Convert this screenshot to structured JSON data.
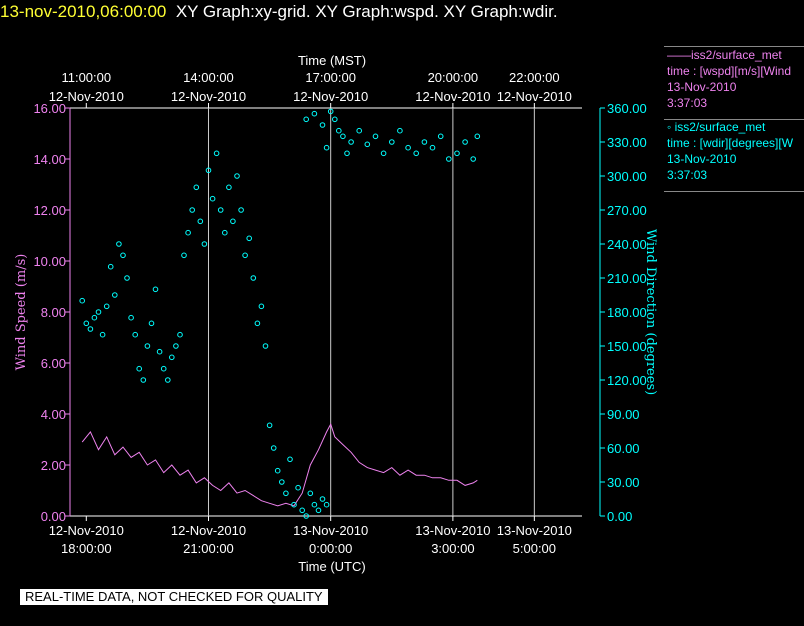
{
  "header": {
    "date": "13-nov-2010,06:00:00",
    "graphs": "XY Graph:xy-grid.  XY Graph:wspd.  XY Graph:wdir."
  },
  "legend": [
    {
      "line1": "——iss2/surface_met",
      "line2": "time : [wspd][m/s][Wind",
      "line3": "13-Nov-2010",
      "line4": "3:37:03",
      "color": "#ee82ee"
    },
    {
      "line1": "◦  iss2/surface_met",
      "line2": "time : [wdir][degrees][W",
      "line3": "13-Nov-2010",
      "line4": "3:37:03",
      "color": "#00ffff"
    }
  ],
  "disclaimer": "REAL-TIME DATA, NOT CHECKED FOR QUALITY",
  "chart_data": {
    "type": "line",
    "top_axis": {
      "label": "Time (MST)",
      "ticks": [
        {
          "hours": 0,
          "time": "11:00:00",
          "date": "12-Nov-2010"
        },
        {
          "hours": 3,
          "time": "14:00:00",
          "date": "12-Nov-2010"
        },
        {
          "hours": 6,
          "time": "17:00:00",
          "date": "12-Nov-2010"
        },
        {
          "hours": 9,
          "time": "20:00:00",
          "date": "12-Nov-2010"
        },
        {
          "hours": 11,
          "time": "22:00:00",
          "date": "12-Nov-2010"
        }
      ]
    },
    "bottom_axis": {
      "label": "Time (UTC)",
      "range": [
        "12-Nov-2010 17:35",
        "13-Nov-2010 06:10"
      ],
      "ticks": [
        {
          "hours": 0,
          "date": "12-Nov-2010",
          "time": "18:00:00"
        },
        {
          "hours": 3,
          "date": "12-Nov-2010",
          "time": "21:00:00"
        },
        {
          "hours": 6,
          "date": "13-Nov-2010",
          "time": "0:00:00"
        },
        {
          "hours": 9,
          "date": "13-Nov-2010",
          "time": "3:00:00"
        },
        {
          "hours": 11,
          "date": "13-Nov-2010",
          "time": "5:00:00"
        }
      ]
    },
    "y_left": {
      "label": "Wind Speed (m/s)",
      "min": 0,
      "max": 16,
      "ticks": [
        "0.00",
        "2.00",
        "4.00",
        "6.00",
        "8.00",
        "10.00",
        "12.00",
        "14.00",
        "16.00"
      ],
      "color": "#ee82ee"
    },
    "y_right": {
      "label": "Wind Direction (degrees)",
      "min": 0,
      "max": 360,
      "ticks": [
        "0.00",
        "30.00",
        "60.00",
        "90.00",
        "120.00",
        "150.00",
        "180.00",
        "210.00",
        "240.00",
        "270.00",
        "300.00",
        "330.00",
        "360.00"
      ],
      "color": "#00ffff"
    },
    "series": [
      {
        "name": "iss2/surface_met wspd",
        "kind": "line",
        "axis": "left",
        "color": "#ee82ee",
        "points": [
          [
            -0.1,
            2.9
          ],
          [
            0.1,
            3.3
          ],
          [
            0.3,
            2.6
          ],
          [
            0.5,
            3.1
          ],
          [
            0.7,
            2.4
          ],
          [
            0.9,
            2.7
          ],
          [
            1.1,
            2.3
          ],
          [
            1.3,
            2.5
          ],
          [
            1.5,
            2.0
          ],
          [
            1.7,
            2.2
          ],
          [
            1.9,
            1.7
          ],
          [
            2.1,
            2.0
          ],
          [
            2.3,
            1.6
          ],
          [
            2.5,
            1.8
          ],
          [
            2.7,
            1.3
          ],
          [
            2.9,
            1.5
          ],
          [
            3.1,
            1.2
          ],
          [
            3.3,
            1.0
          ],
          [
            3.5,
            1.3
          ],
          [
            3.7,
            0.9
          ],
          [
            3.9,
            1.0
          ],
          [
            4.1,
            0.8
          ],
          [
            4.3,
            0.6
          ],
          [
            4.5,
            0.5
          ],
          [
            4.7,
            0.4
          ],
          [
            4.9,
            0.5
          ],
          [
            5.1,
            0.4
          ],
          [
            5.3,
            0.9
          ],
          [
            5.5,
            2.0
          ],
          [
            5.7,
            2.6
          ],
          [
            5.9,
            3.3
          ],
          [
            6.0,
            3.6
          ],
          [
            6.1,
            3.1
          ],
          [
            6.3,
            2.8
          ],
          [
            6.5,
            2.5
          ],
          [
            6.7,
            2.1
          ],
          [
            6.9,
            1.9
          ],
          [
            7.1,
            1.8
          ],
          [
            7.3,
            1.7
          ],
          [
            7.5,
            1.9
          ],
          [
            7.7,
            1.6
          ],
          [
            7.9,
            1.8
          ],
          [
            8.1,
            1.6
          ],
          [
            8.3,
            1.6
          ],
          [
            8.5,
            1.5
          ],
          [
            8.7,
            1.5
          ],
          [
            8.9,
            1.4
          ],
          [
            9.1,
            1.4
          ],
          [
            9.3,
            1.2
          ],
          [
            9.5,
            1.3
          ],
          [
            9.6,
            1.4
          ]
        ]
      },
      {
        "name": "iss2/surface_met wdir",
        "kind": "scatter",
        "axis": "right",
        "color": "#00ffff",
        "points": [
          [
            -0.1,
            190
          ],
          [
            0.0,
            170
          ],
          [
            0.1,
            165
          ],
          [
            0.2,
            175
          ],
          [
            0.3,
            180
          ],
          [
            0.4,
            160
          ],
          [
            0.5,
            185
          ],
          [
            0.6,
            220
          ],
          [
            0.7,
            195
          ],
          [
            0.8,
            240
          ],
          [
            0.9,
            230
          ],
          [
            1.0,
            210
          ],
          [
            1.1,
            175
          ],
          [
            1.2,
            160
          ],
          [
            1.3,
            130
          ],
          [
            1.4,
            120
          ],
          [
            1.5,
            150
          ],
          [
            1.6,
            170
          ],
          [
            1.7,
            200
          ],
          [
            1.8,
            145
          ],
          [
            1.9,
            130
          ],
          [
            2.0,
            120
          ],
          [
            2.1,
            140
          ],
          [
            2.2,
            150
          ],
          [
            2.3,
            160
          ],
          [
            2.4,
            230
          ],
          [
            2.5,
            250
          ],
          [
            2.6,
            270
          ],
          [
            2.7,
            290
          ],
          [
            2.8,
            260
          ],
          [
            2.9,
            240
          ],
          [
            3.0,
            305
          ],
          [
            3.1,
            280
          ],
          [
            3.2,
            320
          ],
          [
            3.3,
            270
          ],
          [
            3.4,
            250
          ],
          [
            3.5,
            290
          ],
          [
            3.6,
            260
          ],
          [
            3.7,
            300
          ],
          [
            3.8,
            270
          ],
          [
            3.9,
            230
          ],
          [
            4.0,
            245
          ],
          [
            4.1,
            210
          ],
          [
            4.2,
            170
          ],
          [
            4.3,
            185
          ],
          [
            4.4,
            150
          ],
          [
            4.5,
            80
          ],
          [
            4.6,
            60
          ],
          [
            4.7,
            40
          ],
          [
            4.8,
            30
          ],
          [
            4.9,
            20
          ],
          [
            5.0,
            50
          ],
          [
            5.1,
            10
          ],
          [
            5.2,
            25
          ],
          [
            5.3,
            5
          ],
          [
            5.4,
            0
          ],
          [
            5.5,
            20
          ],
          [
            5.6,
            10
          ],
          [
            5.7,
            5
          ],
          [
            5.8,
            15
          ],
          [
            5.9,
            10
          ],
          [
            5.4,
            350
          ],
          [
            5.6,
            355
          ],
          [
            5.8,
            345
          ],
          [
            5.9,
            325
          ],
          [
            6.0,
            357
          ],
          [
            6.1,
            350
          ],
          [
            6.2,
            340
          ],
          [
            6.3,
            335
          ],
          [
            6.4,
            320
          ],
          [
            6.5,
            330
          ],
          [
            6.7,
            340
          ],
          [
            6.9,
            328
          ],
          [
            7.1,
            335
          ],
          [
            7.3,
            320
          ],
          [
            7.5,
            330
          ],
          [
            7.7,
            340
          ],
          [
            7.9,
            325
          ],
          [
            8.1,
            320
          ],
          [
            8.3,
            330
          ],
          [
            8.5,
            325
          ],
          [
            8.7,
            335
          ],
          [
            8.9,
            315
          ],
          [
            9.1,
            320
          ],
          [
            9.3,
            330
          ],
          [
            9.5,
            315
          ],
          [
            9.6,
            335
          ]
        ]
      }
    ]
  }
}
